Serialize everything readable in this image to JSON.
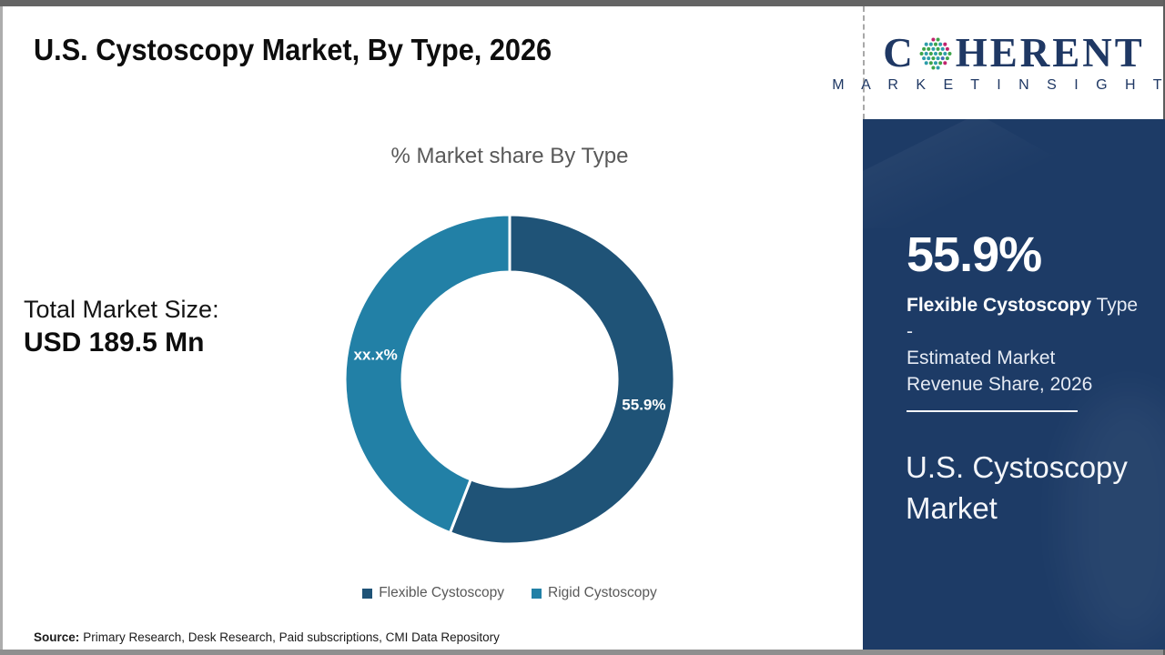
{
  "page": {
    "title": "U.S. Cystoscopy Market, By Type, 2026",
    "total_market_label": "Total Market Size:",
    "total_market_value": "USD 189.5 Mn",
    "source_label": "Source:",
    "source_text": "Primary Research, Desk Research, Paid subscriptions, CMI Data Repository"
  },
  "chart_data": {
    "type": "pie",
    "donut": true,
    "title": "% Market share By Type",
    "categories": [
      "Flexible Cystoscopy",
      "Rigid Cystoscopy"
    ],
    "values": [
      55.9,
      44.1
    ],
    "labels": [
      "55.9%",
      "xx.x%"
    ],
    "colors": [
      "#1F5377",
      "#2280A6"
    ],
    "legend_position": "bottom",
    "xlabel": "",
    "ylabel": ""
  },
  "sidebar": {
    "logo": {
      "brand_c": "C",
      "brand_rest": "HERENT",
      "sub_brand": "M A R K E T   I N S I G H T S",
      "globe_icon": "dotted-globe-icon",
      "text_color": "#1f3864",
      "dot_colors": [
        "#3da44a",
        "#2e9daa",
        "#c0246d",
        "#3f6db5"
      ]
    },
    "stat_value": "55.9%",
    "stat_line1_bold": "Flexible Cystoscopy",
    "stat_line1_rest": " Type -",
    "stat_line2": "Estimated Market",
    "stat_line3": "Revenue Share, 2026",
    "panel_title": "U.S. Cystoscopy Market",
    "colors": {
      "panel_background": "#1d3b66"
    }
  }
}
